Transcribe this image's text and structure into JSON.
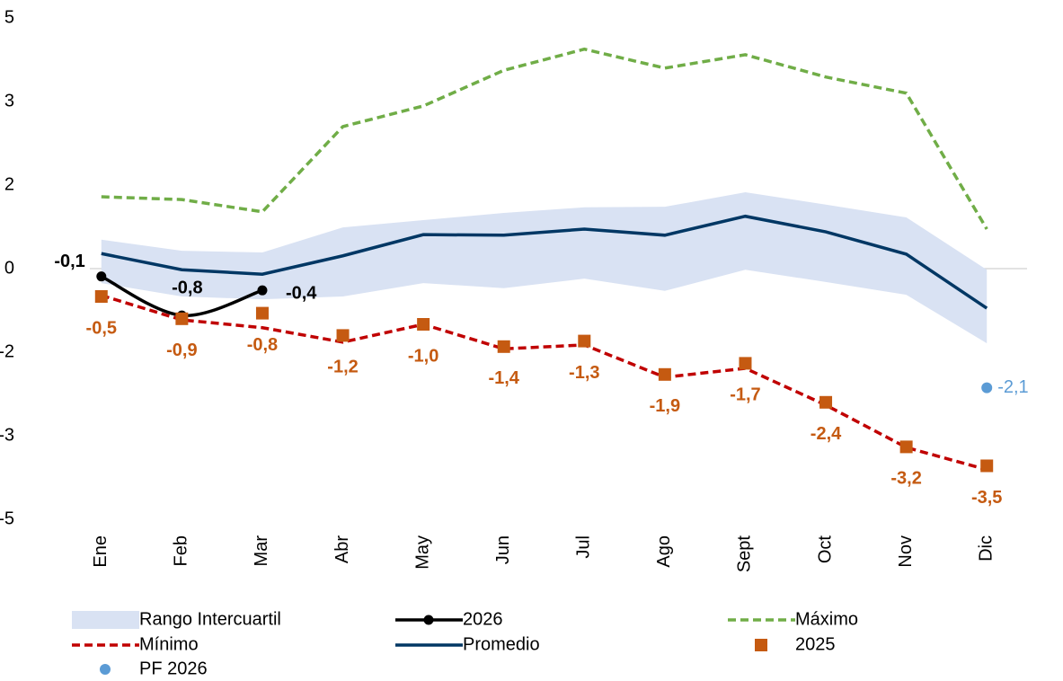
{
  "chart_data": {
    "type": "line",
    "categories": [
      "Ene",
      "Feb",
      "Mar",
      "Abr",
      "May",
      "Jun",
      "Jul",
      "Ago",
      "Sept",
      "Oct",
      "Nov",
      "Dic"
    ],
    "ylim": [
      -4.5,
      4.5
    ],
    "yticks": [
      {
        "value": 4.5,
        "label": "5"
      },
      3,
      {
        "value": 1.5,
        "label": "2"
      },
      0,
      {
        "value": -1.5,
        "label": "-2"
      },
      -3,
      {
        "value": -4.5,
        "label": "-5"
      }
    ],
    "grid": false,
    "series": [
      {
        "name": "Rango Intercuartil",
        "kind": "band",
        "color": "#d9e2f3",
        "values": [
          0.52,
          0.32,
          0.29,
          0.74,
          0.87,
          1.0,
          1.1,
          1.11,
          1.37,
          1.15,
          0.92,
          -0.02
        ],
        "low": [
          -0.26,
          -0.5,
          -0.55,
          -0.5,
          -0.26,
          -0.35,
          -0.18,
          -0.4,
          -0.02,
          -0.24,
          -0.47,
          -1.34
        ]
      },
      {
        "name": "2026",
        "kind": "line",
        "color": "#000000",
        "style": "solid",
        "smooth": true,
        "marker": "circle",
        "values": [
          -0.14,
          -0.84,
          -0.39,
          null,
          null,
          null,
          null,
          null,
          null,
          null,
          null,
          null
        ],
        "value_labels": [
          "-0,1",
          "-0,8",
          "-0,4",
          null,
          null,
          null,
          null,
          null,
          null,
          null,
          null,
          null
        ]
      },
      {
        "name": "Máximo",
        "kind": "line",
        "color": "#70ad47",
        "style": "dashed",
        "values": [
          1.29,
          1.24,
          1.02,
          2.55,
          2.92,
          3.56,
          3.94,
          3.6,
          3.84,
          3.44,
          3.15,
          0.71
        ]
      },
      {
        "name": "Mínimo",
        "kind": "line",
        "color": "#c00000",
        "style": "dashed",
        "values": [
          -0.48,
          -0.92,
          -1.06,
          -1.32,
          -1.0,
          -1.44,
          -1.37,
          -1.95,
          -1.79,
          -2.45,
          -3.21,
          -3.61
        ]
      },
      {
        "name": "Promedio",
        "kind": "line",
        "color": "#003764",
        "style": "solid",
        "values": [
          0.27,
          -0.02,
          -0.1,
          0.23,
          0.61,
          0.6,
          0.71,
          0.6,
          0.94,
          0.66,
          0.26,
          -0.71
        ]
      },
      {
        "name": "2025",
        "kind": "points",
        "color": "#c55a11",
        "marker": "square",
        "values": [
          -0.5,
          -0.9,
          -0.8,
          -1.2,
          -1.0,
          -1.4,
          -1.3,
          -1.9,
          -1.7,
          -2.4,
          -3.2,
          -3.54
        ],
        "value_labels": [
          "-0,5",
          "-0,9",
          "-0,8",
          "-1,2",
          "-1,0",
          "-1,4",
          "-1,3",
          "-1,9",
          "-1,7",
          "-2,4",
          "-3,2",
          "-3,5"
        ]
      },
      {
        "name": "PF 2026",
        "kind": "points",
        "color": "#5b9bd5",
        "marker": "circle",
        "values": [
          null,
          null,
          null,
          null,
          null,
          null,
          null,
          null,
          null,
          null,
          null,
          -2.14
        ],
        "value_labels": [
          null,
          null,
          null,
          null,
          null,
          null,
          null,
          null,
          null,
          null,
          null,
          "-2,1"
        ]
      }
    ]
  }
}
